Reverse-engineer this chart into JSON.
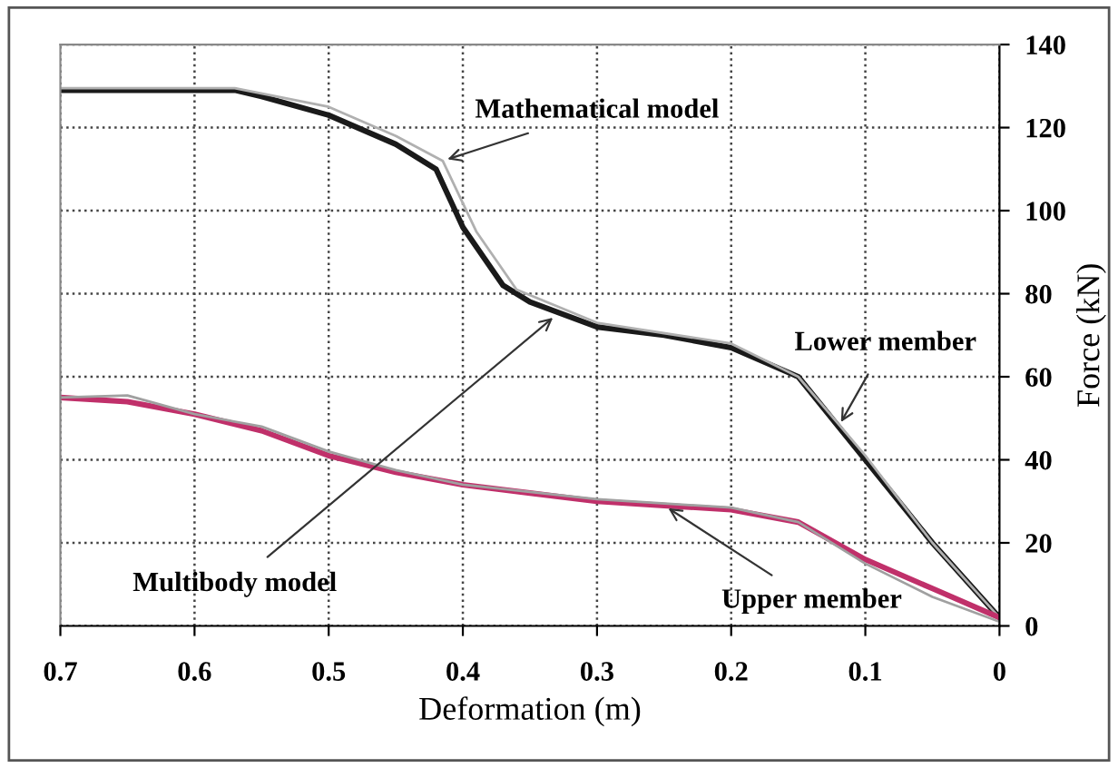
{
  "chart_data": {
    "type": "line",
    "xlabel": "Deformation (m)",
    "ylabel": "Force (kN)",
    "xlim": [
      0.7,
      0
    ],
    "xticks": [
      0.7,
      0.6,
      0.5,
      0.4,
      0.3,
      0.2,
      0.1,
      0
    ],
    "ylim": [
      0,
      140
    ],
    "yticks": [
      0,
      20,
      40,
      60,
      80,
      100,
      120,
      140
    ],
    "grid": true,
    "legend": false,
    "marker": "none",
    "line_style": "solid",
    "series": [
      {
        "color": "#1a1a1a",
        "x": [
          0.7,
          0.57,
          0.55,
          0.5,
          0.45,
          0.42,
          0.4,
          0.37,
          0.35,
          0.3,
          0.25,
          0.2,
          0.15,
          0.1,
          0.05,
          0
        ],
        "values": [
          129,
          129,
          127.5,
          123,
          116,
          110,
          96,
          82,
          78,
          72,
          70,
          67,
          60,
          40,
          20,
          2
        ]
      },
      {
        "color": "#b0b0b0",
        "x": [
          0.7,
          0.57,
          0.5,
          0.45,
          0.415,
          0.39,
          0.36,
          0.3,
          0.2,
          0.15,
          0.1,
          0.05,
          0
        ],
        "values": [
          129.5,
          129.5,
          125,
          118,
          112,
          95,
          81,
          73,
          68,
          60,
          41,
          20,
          2
        ]
      },
      {
        "color": "#c0306a",
        "x": [
          0.7,
          0.65,
          0.6,
          0.55,
          0.5,
          0.45,
          0.4,
          0.35,
          0.3,
          0.25,
          0.2,
          0.15,
          0.1,
          0.05,
          0
        ],
        "values": [
          55,
          54,
          51,
          47,
          41,
          37,
          34,
          32,
          30,
          29,
          28,
          25,
          16,
          9,
          2
        ]
      },
      {
        "color": "#a0a0a0",
        "x": [
          0.7,
          0.65,
          0.6,
          0.55,
          0.5,
          0.45,
          0.4,
          0.3,
          0.2,
          0.15,
          0.1,
          0.05,
          0
        ],
        "values": [
          55,
          55.5,
          51,
          48,
          42,
          37.5,
          34,
          30.5,
          28.5,
          25,
          15,
          7,
          1
        ]
      }
    ],
    "annotations": [
      {
        "text": "Mathematical model",
        "x": 0.415,
        "y": 112
      },
      {
        "text": "Multibody model",
        "x": 0.33,
        "y": 75
      },
      {
        "text": "Lower member",
        "x": 0.12,
        "y": 48
      },
      {
        "text": "Upper member",
        "x": 0.25,
        "y": 29
      }
    ]
  }
}
